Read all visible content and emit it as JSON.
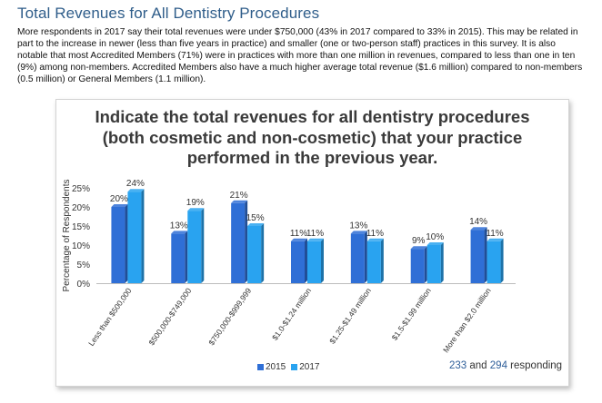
{
  "page": {
    "title": "Total Revenues for All Dentistry Procedures",
    "intro": "More respondents in 2017 say their total revenues were under $750,000 (43% in 2017 compared to 33% in 2015). This may be related in part to the increase in newer (less than five years in practice) and smaller (one or two-person staff) practices in this survey. It is also notable that most Accredited Members (71%) were in practices with more than one million in revenues, compared to less than one in ten (9%) among non-members. Accredited Members also have a much higher average total revenue ($1.6 million) compared to non-members (0.5 million) or General Members (1.1 million)."
  },
  "chart_data": {
    "type": "bar",
    "title_lines": [
      "Indicate the total revenues for all dentistry procedures",
      "(both cosmetic and non-cosmetic) that your practice",
      "performed in the previous year."
    ],
    "categories": [
      "Less than $500,000",
      "$500,000-$749,000",
      "$750,000-$999,999",
      "$1.0-$1.24 million",
      "$1.25-$1.49 million",
      "$1.5-$1.99 million",
      "More than $2.0 million"
    ],
    "series": [
      {
        "name": "2015",
        "values": [
          20,
          13,
          21,
          11,
          13,
          9,
          14
        ],
        "color": "#2f6fd6"
      },
      {
        "name": "2017",
        "values": [
          24,
          19,
          15,
          11,
          11,
          10,
          11
        ],
        "color": "#29a3f0"
      }
    ],
    "value_suffix": "%",
    "ylabel": "Percentage of Respondents",
    "ylim": [
      0,
      25
    ],
    "yticks": [
      0,
      5,
      10,
      15,
      20,
      25
    ],
    "ytick_labels": [
      "0%",
      "5%",
      "10%",
      "15%",
      "20%",
      "25%"
    ],
    "legend_position": "bottom",
    "responding": {
      "n_2015": "233",
      "and": "and",
      "n_2017": "294",
      "label": "responding"
    }
  }
}
